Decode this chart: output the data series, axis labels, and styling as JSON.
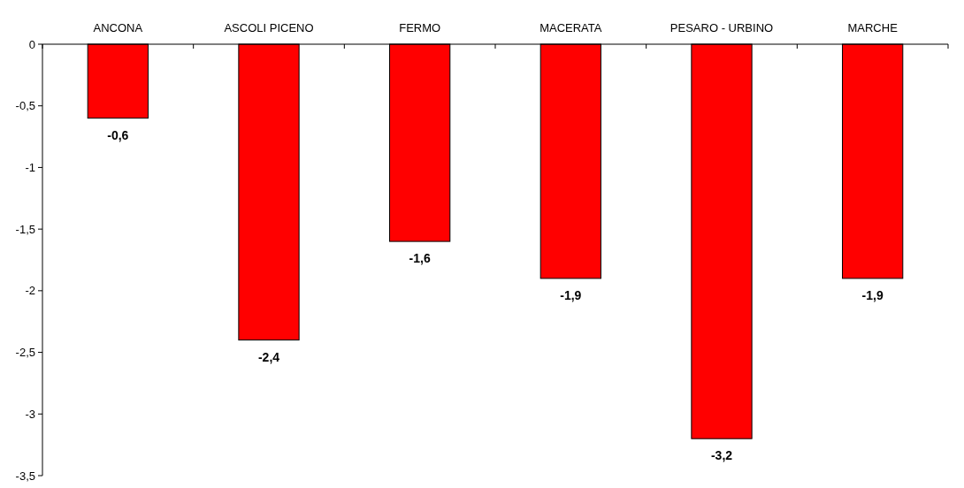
{
  "chart_data": {
    "type": "bar",
    "categories": [
      "ANCONA",
      "ASCOLI PICENO",
      "FERMO",
      "MACERATA",
      "PESARO - URBINO",
      "MARCHE"
    ],
    "values": [
      -0.6,
      -2.4,
      -1.6,
      -1.9,
      -3.2,
      -1.9
    ],
    "value_labels": [
      "-0,6",
      "-2,4",
      "-1,6",
      "-1,9",
      "-3,2",
      "-1,9"
    ],
    "color": "#ff0000",
    "ylim": [
      -3.5,
      0
    ],
    "yticks": [
      0,
      {
        "value": -0.5,
        "label": "-0,5"
      },
      -1,
      {
        "value": -1.5,
        "label": "-1,5"
      },
      -2,
      {
        "value": -2.5,
        "label": "-2,5"
      },
      -3,
      {
        "value": -3.5,
        "label": "-3,5"
      }
    ]
  }
}
